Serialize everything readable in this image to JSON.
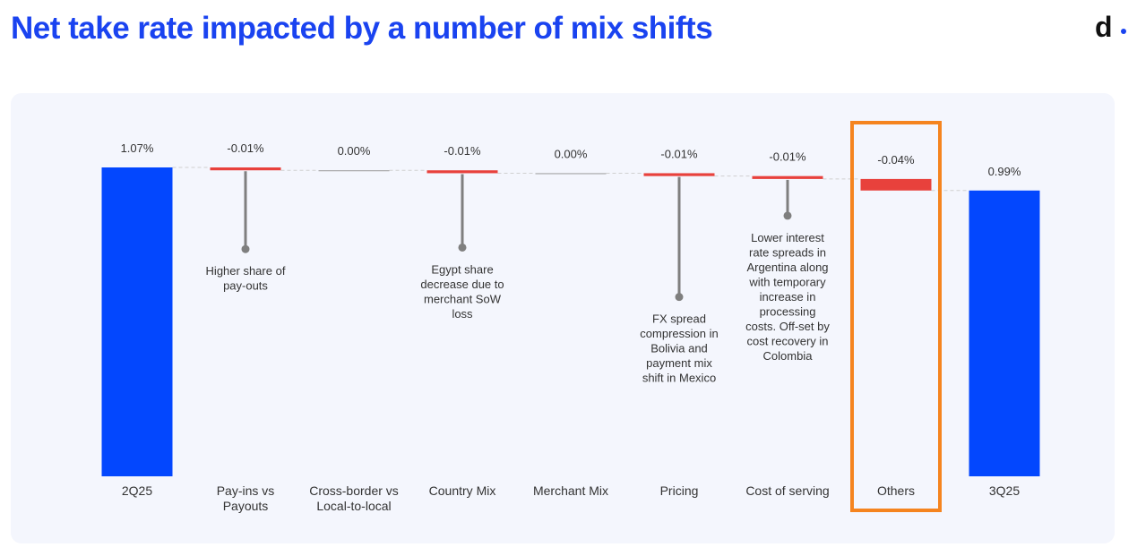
{
  "header": {
    "title": "Net take rate impacted by a number of mix shifts",
    "logo_text": "d",
    "brand_color": "#1a43f0",
    "logo_dot_color": "#1a43f0"
  },
  "panel": {
    "background": "#f4f6fd"
  },
  "chart_data": {
    "type": "bar",
    "subtype": "waterfall",
    "title": "",
    "xlabel": "",
    "ylabel": "",
    "unit": "%",
    "categories": [
      "2Q25",
      "Pay-ins vs\nPayouts",
      "Cross-border vs\nLocal-to-local",
      "Country Mix",
      "Merchant Mix",
      "Pricing",
      "Cost of serving",
      "Others",
      "3Q25"
    ],
    "values": [
      1.07,
      -0.01,
      0.0,
      -0.01,
      0.0,
      -0.01,
      -0.01,
      -0.04,
      0.99
    ],
    "value_labels": [
      "1.07%",
      "-0.01%",
      "0.00%",
      "-0.01%",
      "0.00%",
      "-0.01%",
      "-0.01%",
      "-0.04%",
      "0.99%"
    ],
    "bar_kinds": [
      "total",
      "delta",
      "delta",
      "delta",
      "delta",
      "delta",
      "delta",
      "delta",
      "total"
    ],
    "annotations": [
      {
        "category_index": 1,
        "text": "Higher share of\npay-outs"
      },
      {
        "category_index": 3,
        "text": "Egypt share\ndecrease due to\nmerchant SoW\nloss"
      },
      {
        "category_index": 5,
        "text": "FX spread\ncompression in\nBolivia and\npayment mix\nshift in Mexico"
      },
      {
        "category_index": 6,
        "text": "Lower interest\nrate spreads in\nArgentina along\nwith temporary\nincrease in\nprocessing\ncosts. Off-set by\ncost recovery in\nColombia"
      }
    ],
    "highlight_index": 7,
    "ylim": [
      0,
      1.07
    ],
    "grid": false,
    "legend": "none",
    "colors": {
      "total": "#0347fe",
      "negative": "#e8413c",
      "zero": "#9a9a9a",
      "connector": "#d0d0d0",
      "stem": "#7f7f7f",
      "highlight": "#f5841f",
      "text": "#333333"
    }
  }
}
